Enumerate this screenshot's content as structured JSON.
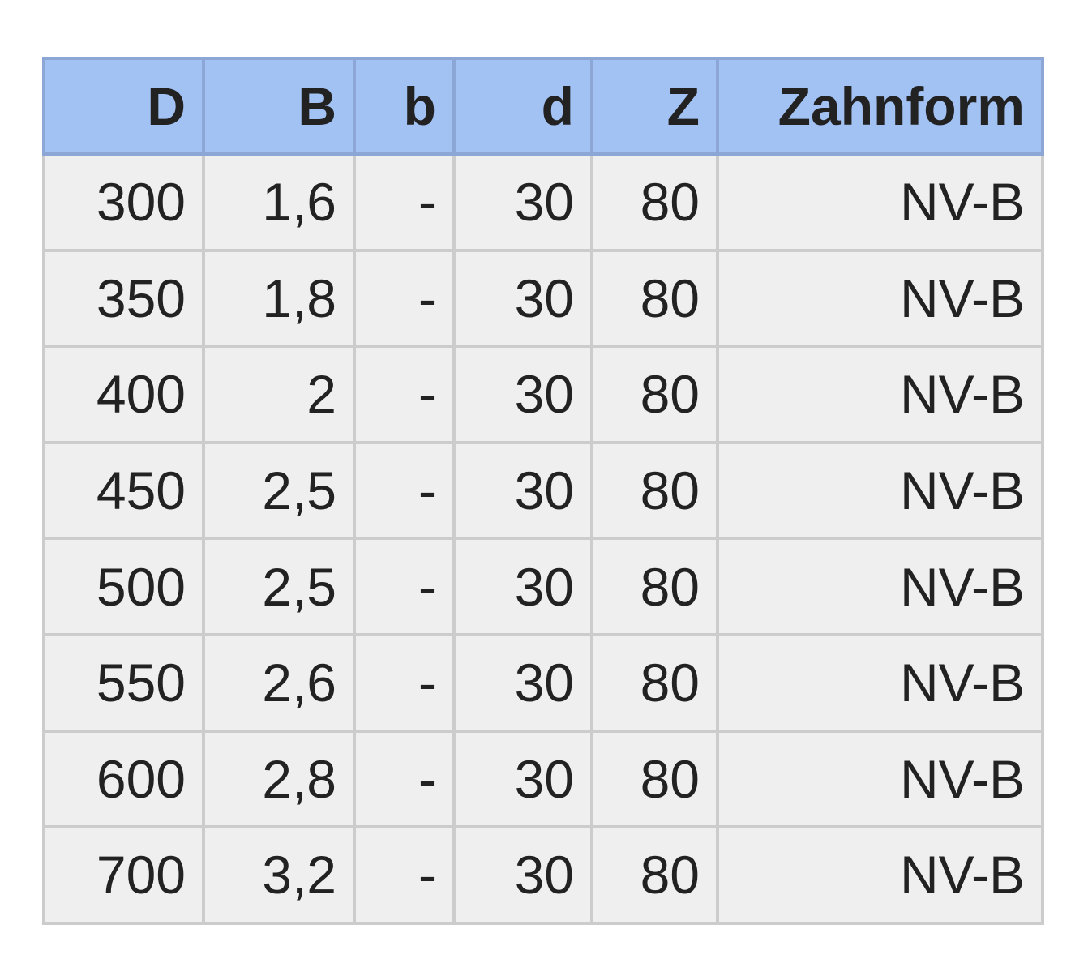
{
  "table": {
    "headers": [
      "D",
      "B",
      "b",
      "d",
      "Z",
      "Zahnform"
    ],
    "rows": [
      [
        "300",
        "1,6",
        "-",
        "30",
        "80",
        "NV-B"
      ],
      [
        "350",
        "1,8",
        "-",
        "30",
        "80",
        "NV-B"
      ],
      [
        "400",
        "2",
        "-",
        "30",
        "80",
        "NV-B"
      ],
      [
        "450",
        "2,5",
        "-",
        "30",
        "80",
        "NV-B"
      ],
      [
        "500",
        "2,5",
        "-",
        "30",
        "80",
        "NV-B"
      ],
      [
        "550",
        "2,6",
        "-",
        "30",
        "80",
        "NV-B"
      ],
      [
        "600",
        "2,8",
        "-",
        "30",
        "80",
        "NV-B"
      ],
      [
        "700",
        "3,2",
        "-",
        "30",
        "80",
        "NV-B"
      ]
    ]
  },
  "colors": {
    "header_bg": "#a3c2f4",
    "header_border": "#8ca7d6",
    "cell_bg": "#efefef",
    "cell_border": "#cccccc",
    "text": "#222222"
  }
}
